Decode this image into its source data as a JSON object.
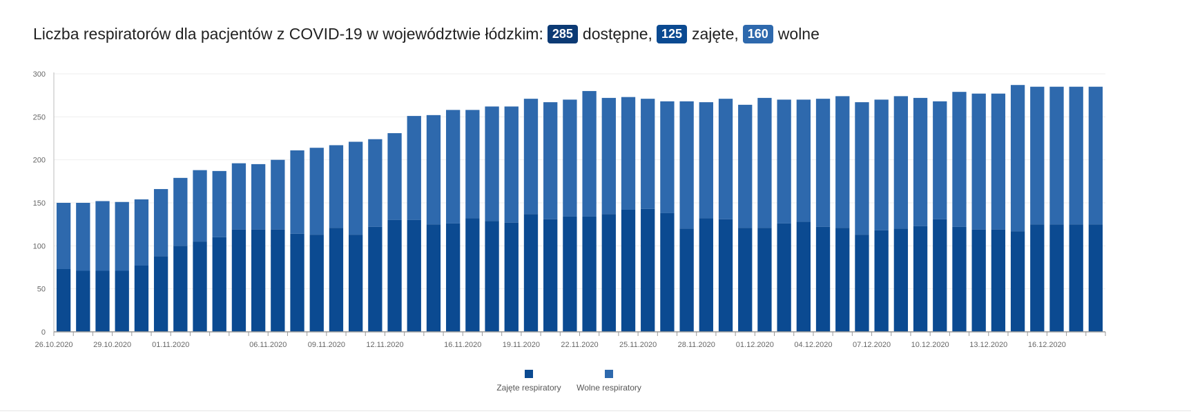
{
  "header": {
    "prefix": "Liczba respiratorów dla pacjentów z COVID-19 w województwie łódzkim:",
    "available_value": "285",
    "available_label": "dostępne,",
    "occupied_value": "125",
    "occupied_label": "zajęte,",
    "free_value": "160",
    "free_label": "wolne"
  },
  "colors": {
    "badge_available": "#0c3a74",
    "badge_occupied": "#0b4a91",
    "badge_free": "#2e69ad",
    "occupied": "#0b4a91",
    "free": "#2e69ad",
    "axis": "#999999",
    "grid": "#eeeeee"
  },
  "chart_data": {
    "type": "bar",
    "stacked": true,
    "title": "",
    "xlabel": "",
    "ylabel": "",
    "ylim": [
      0,
      300
    ],
    "yticks": [
      0,
      50,
      100,
      150,
      200,
      250,
      300
    ],
    "grid": "horizontal",
    "legend_position": "bottom-center",
    "categories": [
      "26.10.2020",
      "27.10.2020",
      "28.10.2020",
      "29.10.2020",
      "30.10.2020",
      "31.10.2020",
      "01.11.2020",
      "02.11.2020",
      "03.11.2020",
      "04.11.2020",
      "05.11.2020",
      "06.11.2020",
      "07.11.2020",
      "08.11.2020",
      "09.11.2020",
      "10.11.2020",
      "11.11.2020",
      "12.11.2020",
      "13.11.2020",
      "14.11.2020",
      "15.11.2020",
      "16.11.2020",
      "17.11.2020",
      "18.11.2020",
      "19.11.2020",
      "20.11.2020",
      "21.11.2020",
      "22.11.2020",
      "23.11.2020",
      "24.11.2020",
      "25.11.2020",
      "26.11.2020",
      "27.11.2020",
      "28.11.2020",
      "29.11.2020",
      "30.11.2020",
      "01.12.2020",
      "02.12.2020",
      "03.12.2020",
      "04.12.2020",
      "05.12.2020",
      "06.12.2020",
      "07.12.2020",
      "08.12.2020",
      "09.12.2020",
      "10.12.2020",
      "11.12.2020",
      "12.12.2020",
      "13.12.2020",
      "14.12.2020",
      "15.12.2020",
      "16.12.2020",
      "17.12.2020",
      "18.12.2020"
    ],
    "xtick_labels": [
      "26.10.2020",
      "29.10.2020",
      "01.11.2020",
      "06.11.2020",
      "09.11.2020",
      "12.11.2020",
      "16.11.2020",
      "19.11.2020",
      "22.11.2020",
      "25.11.2020",
      "28.11.2020",
      "01.12.2020",
      "04.12.2020",
      "07.12.2020",
      "10.12.2020",
      "13.12.2020",
      "16.12.2020"
    ],
    "series": [
      {
        "name": "Zajęte respiratory",
        "color": "#0b4a91",
        "values": [
          73,
          71,
          71,
          71,
          77,
          88,
          100,
          105,
          110,
          119,
          119,
          119,
          114,
          113,
          121,
          113,
          122,
          130,
          130,
          125,
          126,
          132,
          129,
          127,
          137,
          131,
          134,
          134,
          137,
          142,
          143,
          138,
          120,
          132,
          131,
          121,
          121,
          126,
          128,
          122,
          121,
          113,
          118,
          120,
          123,
          131,
          122,
          119,
          119,
          117,
          125,
          125,
          125,
          125
        ]
      },
      {
        "name": "Wolne respiratory",
        "color": "#2e69ad",
        "values": [
          77,
          79,
          81,
          80,
          77,
          78,
          79,
          83,
          77,
          77,
          76,
          81,
          97,
          101,
          96,
          108,
          102,
          101,
          121,
          127,
          132,
          126,
          133,
          135,
          134,
          136,
          136,
          146,
          135,
          131,
          128,
          130,
          148,
          135,
          140,
          143,
          151,
          144,
          142,
          149,
          153,
          154,
          152,
          154,
          149,
          137,
          157,
          158,
          158,
          170,
          160,
          160,
          160,
          160
        ]
      }
    ]
  }
}
